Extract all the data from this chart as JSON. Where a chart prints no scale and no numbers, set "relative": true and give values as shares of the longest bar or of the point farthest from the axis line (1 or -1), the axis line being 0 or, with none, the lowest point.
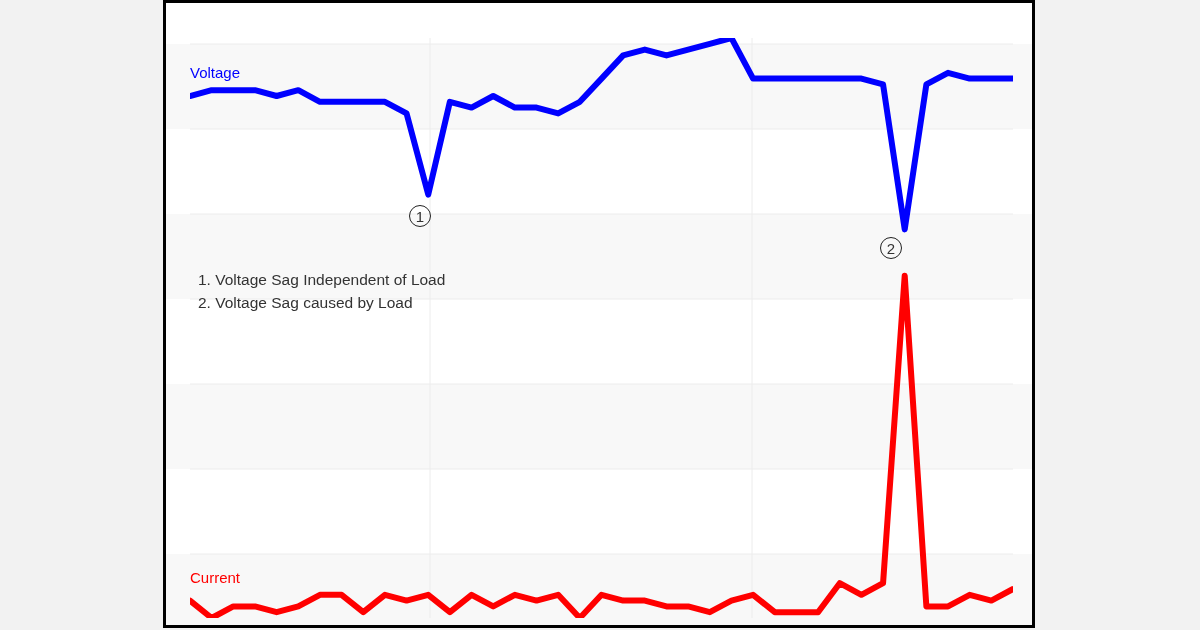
{
  "chart_data": {
    "type": "line",
    "relative": true,
    "categories": [
      null,
      null,
      null,
      null,
      null,
      null,
      null,
      null,
      null,
      null,
      null,
      null,
      null,
      null,
      null,
      null,
      null,
      null,
      null,
      null,
      null,
      null,
      null,
      null,
      null,
      null,
      null,
      null,
      null,
      null,
      null,
      null,
      null,
      null,
      null,
      null,
      null,
      null,
      null
    ],
    "series": [
      {
        "name": "Voltage",
        "color": "#0000ff",
        "values": [
          0.9,
          0.91,
          0.91,
          0.91,
          0.9,
          0.91,
          0.89,
          0.89,
          0.89,
          0.89,
          0.87,
          0.73,
          0.89,
          0.88,
          0.9,
          0.88,
          0.88,
          0.87,
          0.89,
          0.93,
          0.97,
          0.98,
          0.97,
          0.98,
          0.99,
          1.0,
          0.93,
          0.93,
          0.93,
          0.93,
          0.93,
          0.93,
          0.92,
          0.67,
          0.92,
          0.94,
          0.93,
          0.93,
          0.93
        ]
      },
      {
        "name": "Current",
        "color": "#ff0000",
        "values": [
          0.03,
          0,
          0.02,
          0.02,
          0.01,
          0.02,
          0.04,
          0.04,
          0.01,
          0.04,
          0.03,
          0.04,
          0.01,
          0.04,
          0.02,
          0.04,
          0.03,
          0.04,
          0,
          0.04,
          0.03,
          0.03,
          0.02,
          0.02,
          0.01,
          0.03,
          0.04,
          0.01,
          0.01,
          0.01,
          0.06,
          0.04,
          0.06,
          0.59,
          0.02,
          0.02,
          0.04,
          0.03,
          0.05
        ]
      }
    ],
    "annotations": [
      "1",
      "2",
      "1. Voltage Sag Independent of Load",
      "2. Voltage Sag caused by Load"
    ],
    "grid": true,
    "legend": false,
    "marker": "none",
    "line_style": "solid"
  }
}
